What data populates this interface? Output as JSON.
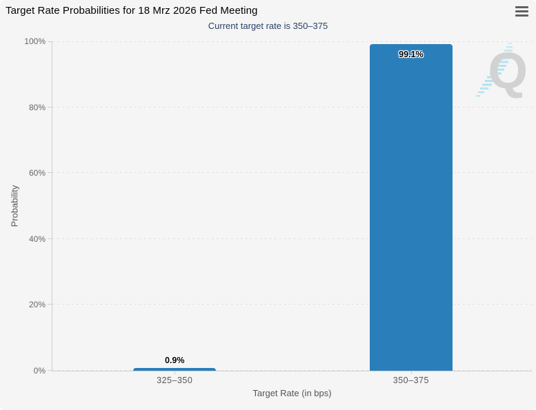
{
  "menu": {
    "icon": "hamburger-icon"
  },
  "watermark": {
    "letter": "Q"
  },
  "colors": {
    "bar": "#2a7fba",
    "background": "#f5f5f5",
    "title": "#000000",
    "subtitle": "#2a4166",
    "grid": "#dcdcdc",
    "axis_line": "#cfcfcf",
    "tick_label": "#666666",
    "watermark_letter": "#d2d2d2",
    "watermark_stripes": "#a8dff0"
  },
  "chart_data": {
    "type": "bar",
    "title": "Target Rate Probabilities for 18 Mrz 2026 Fed Meeting",
    "subtitle": "Current target rate is 350–375",
    "categories": [
      "325–350",
      "350–375"
    ],
    "values": [
      0.9,
      99.1
    ],
    "data_labels": [
      "0.9%",
      "99.1%"
    ],
    "xlabel": "Target Rate (in bps)",
    "ylabel": "Probability",
    "ylim": [
      0,
      100
    ],
    "yticks": [
      "0%",
      "20%",
      "40%",
      "60%",
      "80%",
      "100%"
    ],
    "grid": "horizontal-dotted",
    "legend": "none"
  }
}
